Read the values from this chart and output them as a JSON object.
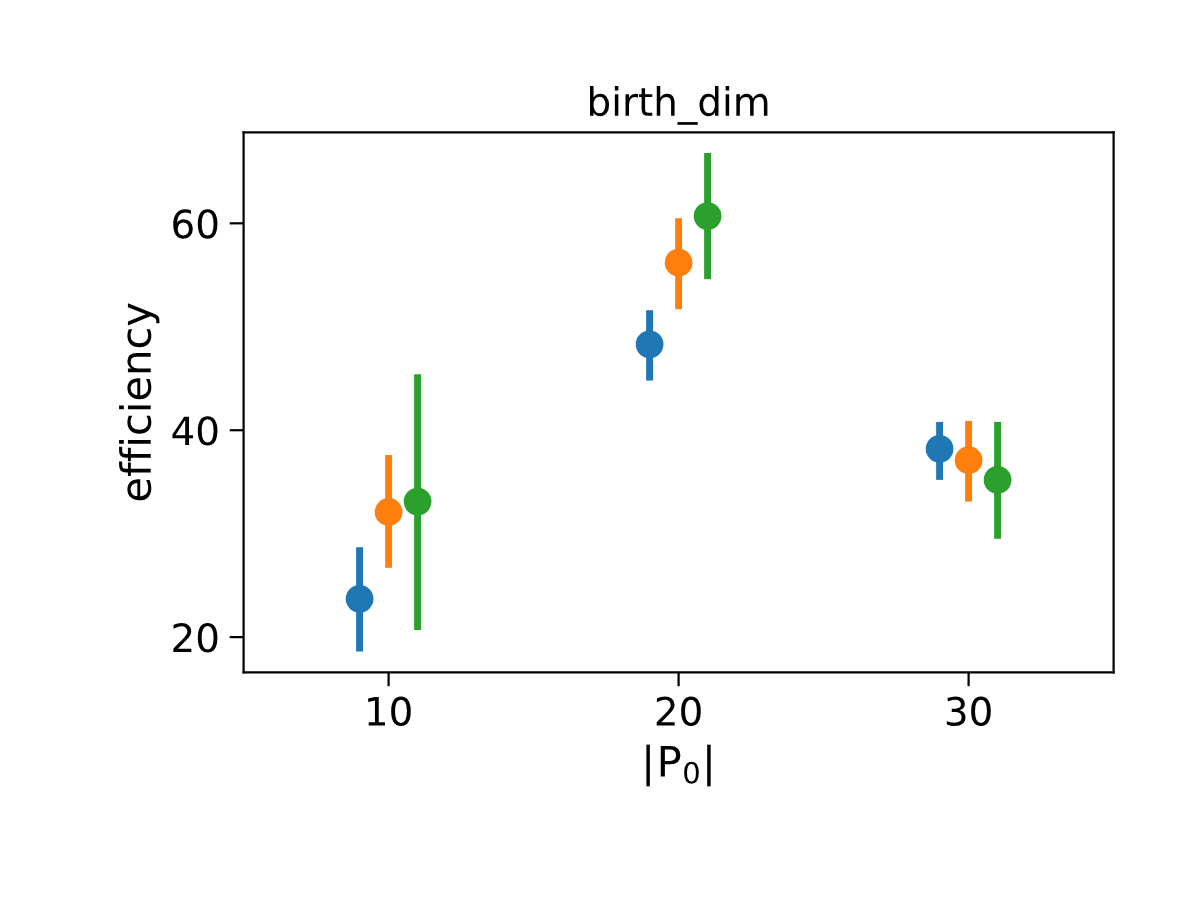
{
  "chart_data": {
    "type": "scatter",
    "title": "birth_dim",
    "xlabel": "|$_{}$P$_{0}$|",
    "ylabel": "efficiency",
    "xlim": [
      5,
      35
    ],
    "xticks": [
      10,
      20,
      30
    ],
    "ylim": [
      16.6,
      68.8
    ],
    "yticks": [
      20,
      40,
      60
    ],
    "grid": false,
    "legend": false,
    "marker": "circle",
    "series": [
      {
        "color": "#1f77b4",
        "x": [
          9,
          19,
          29
        ],
        "values": [
          23.7,
          48.3,
          38.2
        ],
        "errors": [
          [
            18.6,
            28.7
          ],
          [
            44.8,
            51.6
          ],
          [
            35.2,
            40.8
          ]
        ]
      },
      {
        "color": "#ff7f0e",
        "x": [
          10,
          20,
          30
        ],
        "values": [
          32.1,
          56.2,
          37.1
        ],
        "errors": [
          [
            26.7,
            37.6
          ],
          [
            51.7,
            60.5
          ],
          [
            33.1,
            40.9
          ]
        ]
      },
      {
        "color": "#2ca02c",
        "x": [
          11,
          21,
          31
        ],
        "values": [
          33.1,
          60.7,
          35.2
        ],
        "errors": [
          [
            20.7,
            45.4
          ],
          [
            54.6,
            66.8
          ],
          [
            29.5,
            40.8
          ]
        ]
      }
    ]
  }
}
